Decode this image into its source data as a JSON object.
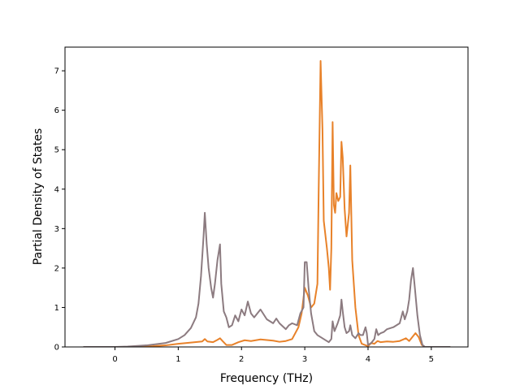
{
  "chart_data": {
    "type": "line",
    "title": "",
    "xlabel": "Frequency (THz)",
    "ylabel": "Partial Density of States",
    "xlim": [
      -0.79,
      5.58
    ],
    "ylim": [
      0,
      7.6
    ],
    "xticks": [
      0,
      1,
      2,
      3,
      4,
      5
    ],
    "yticks": [
      0,
      1,
      2,
      3,
      4,
      5,
      6,
      7
    ],
    "grid": false,
    "legend": "none",
    "series": [
      {
        "color": "#e8822a",
        "points": [
          [
            -0.5,
            0
          ],
          [
            0,
            0
          ],
          [
            0.2,
            0
          ],
          [
            0.4,
            0.01
          ],
          [
            0.6,
            0.02
          ],
          [
            0.8,
            0.04
          ],
          [
            1.0,
            0.08
          ],
          [
            1.2,
            0.11
          ],
          [
            1.38,
            0.14
          ],
          [
            1.42,
            0.2
          ],
          [
            1.46,
            0.14
          ],
          [
            1.55,
            0.12
          ],
          [
            1.62,
            0.18
          ],
          [
            1.66,
            0.22
          ],
          [
            1.7,
            0.15
          ],
          [
            1.76,
            0.05
          ],
          [
            1.85,
            0.05
          ],
          [
            1.95,
            0.12
          ],
          [
            2.05,
            0.17
          ],
          [
            2.15,
            0.15
          ],
          [
            2.3,
            0.19
          ],
          [
            2.5,
            0.16
          ],
          [
            2.6,
            0.13
          ],
          [
            2.7,
            0.15
          ],
          [
            2.8,
            0.2
          ],
          [
            2.9,
            0.5
          ],
          [
            2.95,
            0.85
          ],
          [
            3.0,
            1.5
          ],
          [
            3.05,
            1.3
          ],
          [
            3.1,
            1.0
          ],
          [
            3.15,
            1.1
          ],
          [
            3.2,
            1.6
          ],
          [
            3.22,
            4.0
          ],
          [
            3.25,
            7.25
          ],
          [
            3.28,
            5.5
          ],
          [
            3.3,
            3.2
          ],
          [
            3.35,
            2.5
          ],
          [
            3.38,
            2.0
          ],
          [
            3.4,
            1.45
          ],
          [
            3.42,
            2.5
          ],
          [
            3.44,
            5.7
          ],
          [
            3.46,
            3.6
          ],
          [
            3.48,
            3.4
          ],
          [
            3.5,
            3.9
          ],
          [
            3.53,
            3.7
          ],
          [
            3.56,
            3.8
          ],
          [
            3.58,
            5.2
          ],
          [
            3.6,
            4.8
          ],
          [
            3.63,
            3.5
          ],
          [
            3.66,
            2.8
          ],
          [
            3.7,
            3.4
          ],
          [
            3.72,
            4.6
          ],
          [
            3.75,
            2.2
          ],
          [
            3.8,
            1.0
          ],
          [
            3.85,
            0.3
          ],
          [
            3.9,
            0.08
          ],
          [
            3.95,
            0.05
          ],
          [
            4.0,
            0.02
          ],
          [
            4.05,
            0.1
          ],
          [
            4.1,
            0.08
          ],
          [
            4.15,
            0.15
          ],
          [
            4.2,
            0.12
          ],
          [
            4.3,
            0.14
          ],
          [
            4.4,
            0.13
          ],
          [
            4.5,
            0.15
          ],
          [
            4.6,
            0.22
          ],
          [
            4.65,
            0.15
          ],
          [
            4.7,
            0.25
          ],
          [
            4.75,
            0.35
          ],
          [
            4.8,
            0.25
          ],
          [
            4.85,
            0.05
          ],
          [
            4.9,
            0
          ],
          [
            5.0,
            0
          ],
          [
            5.3,
            0
          ]
        ]
      },
      {
        "color": "#8c7b80",
        "points": [
          [
            -0.5,
            0
          ],
          [
            0,
            0
          ],
          [
            0.2,
            0.01
          ],
          [
            0.5,
            0.04
          ],
          [
            0.8,
            0.1
          ],
          [
            1.0,
            0.2
          ],
          [
            1.1,
            0.3
          ],
          [
            1.2,
            0.48
          ],
          [
            1.28,
            0.75
          ],
          [
            1.32,
            1.1
          ],
          [
            1.36,
            1.8
          ],
          [
            1.4,
            2.8
          ],
          [
            1.42,
            3.4
          ],
          [
            1.45,
            2.6
          ],
          [
            1.48,
            2.0
          ],
          [
            1.52,
            1.5
          ],
          [
            1.55,
            1.25
          ],
          [
            1.58,
            1.6
          ],
          [
            1.62,
            2.2
          ],
          [
            1.66,
            2.6
          ],
          [
            1.68,
            1.6
          ],
          [
            1.72,
            0.9
          ],
          [
            1.76,
            0.75
          ],
          [
            1.8,
            0.5
          ],
          [
            1.85,
            0.55
          ],
          [
            1.9,
            0.8
          ],
          [
            1.95,
            0.65
          ],
          [
            2.0,
            0.95
          ],
          [
            2.05,
            0.8
          ],
          [
            2.1,
            1.15
          ],
          [
            2.15,
            0.85
          ],
          [
            2.2,
            0.75
          ],
          [
            2.3,
            0.95
          ],
          [
            2.4,
            0.7
          ],
          [
            2.5,
            0.6
          ],
          [
            2.55,
            0.72
          ],
          [
            2.6,
            0.6
          ],
          [
            2.7,
            0.45
          ],
          [
            2.75,
            0.55
          ],
          [
            2.8,
            0.6
          ],
          [
            2.88,
            0.55
          ],
          [
            2.93,
            0.85
          ],
          [
            2.98,
            1.0
          ],
          [
            3.0,
            2.15
          ],
          [
            3.03,
            2.15
          ],
          [
            3.06,
            1.5
          ],
          [
            3.1,
            0.85
          ],
          [
            3.15,
            0.4
          ],
          [
            3.2,
            0.3
          ],
          [
            3.3,
            0.2
          ],
          [
            3.38,
            0.12
          ],
          [
            3.42,
            0.2
          ],
          [
            3.44,
            0.65
          ],
          [
            3.47,
            0.4
          ],
          [
            3.52,
            0.6
          ],
          [
            3.56,
            0.8
          ],
          [
            3.58,
            1.2
          ],
          [
            3.6,
            0.9
          ],
          [
            3.63,
            0.5
          ],
          [
            3.66,
            0.35
          ],
          [
            3.7,
            0.4
          ],
          [
            3.72,
            0.55
          ],
          [
            3.75,
            0.3
          ],
          [
            3.8,
            0.22
          ],
          [
            3.85,
            0.35
          ],
          [
            3.88,
            0.3
          ],
          [
            3.92,
            0.3
          ],
          [
            3.96,
            0.5
          ],
          [
            3.98,
            0.35
          ],
          [
            4.0,
            0.05
          ],
          [
            4.05,
            0.1
          ],
          [
            4.1,
            0.2
          ],
          [
            4.13,
            0.45
          ],
          [
            4.16,
            0.3
          ],
          [
            4.2,
            0.35
          ],
          [
            4.25,
            0.38
          ],
          [
            4.3,
            0.45
          ],
          [
            4.4,
            0.5
          ],
          [
            4.5,
            0.6
          ],
          [
            4.55,
            0.9
          ],
          [
            4.58,
            0.7
          ],
          [
            4.62,
            0.9
          ],
          [
            4.65,
            1.2
          ],
          [
            4.68,
            1.7
          ],
          [
            4.71,
            2.0
          ],
          [
            4.74,
            1.5
          ],
          [
            4.78,
            0.8
          ],
          [
            4.82,
            0.3
          ],
          [
            4.86,
            0.05
          ],
          [
            4.9,
            0
          ],
          [
            5.0,
            0
          ],
          [
            5.3,
            0
          ]
        ]
      }
    ]
  }
}
